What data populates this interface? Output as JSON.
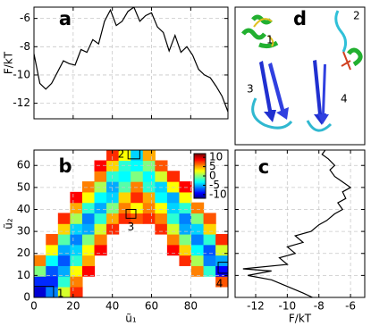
{
  "chart_data": [
    {
      "type": "line",
      "panel": "a",
      "ylabel": "F/kT",
      "color": "#000000",
      "grid": true,
      "x": [
        0,
        3,
        6,
        9,
        12,
        15,
        18,
        21,
        24,
        27,
        30,
        33,
        36,
        39,
        42,
        45,
        48,
        51,
        54,
        57,
        60,
        63,
        66,
        69,
        72,
        75,
        78,
        81,
        84,
        87,
        90,
        93,
        96,
        99
      ],
      "values": [
        -8.5,
        -10.6,
        -11,
        -10.6,
        -9.8,
        -9,
        -9.2,
        -9.3,
        -8.2,
        -8.4,
        -7.5,
        -7.8,
        -6.2,
        -5.4,
        -6.5,
        -6.2,
        -5.5,
        -5.2,
        -6.2,
        -5.8,
        -5.6,
        -6.6,
        -7,
        -8.3,
        -7.2,
        -8.4,
        -8,
        -8.6,
        -9.6,
        -10,
        -10.2,
        -10.8,
        -11.5,
        -12.6
      ],
      "xlim": [
        0,
        99
      ],
      "xticks": [
        0,
        20,
        40,
        60,
        80
      ],
      "xtick_labels": false,
      "ylim": [
        -13.1,
        -5.2
      ],
      "yticks": [
        -6,
        -8,
        -10,
        -12
      ]
    },
    {
      "type": "heatmap",
      "panel": "b",
      "xlabel": "ũ₁",
      "ylabel": "ũ₂",
      "grid": true,
      "colormap": "jet",
      "xlim": [
        0,
        99
      ],
      "xticks": [
        0,
        20,
        40,
        60,
        80
      ],
      "ylim": [
        0,
        67
      ],
      "yticks": [
        0,
        10,
        20,
        30,
        40,
        50,
        60
      ],
      "clim": [
        -12,
        12
      ],
      "colorbar_ticks": [
        10,
        5,
        0,
        -5,
        -10
      ],
      "z": [
        [
          -10,
          -6,
          2,
          8,
          null,
          null,
          null,
          null,
          null,
          null,
          null,
          null,
          null,
          null,
          null,
          null
        ],
        [
          -8,
          -8,
          -2,
          6,
          null,
          null,
          null,
          null,
          null,
          null,
          null,
          null,
          null,
          null,
          null,
          7
        ],
        [
          0,
          -7,
          -5,
          3,
          9,
          null,
          null,
          null,
          null,
          null,
          null,
          null,
          null,
          6,
          -2,
          -9
        ],
        [
          6,
          -3,
          -7,
          -2,
          5,
          null,
          null,
          null,
          null,
          null,
          null,
          null,
          8,
          1,
          -6,
          -5
        ],
        [
          null,
          3,
          -5,
          -4,
          3,
          9,
          null,
          null,
          null,
          null,
          null,
          9,
          4,
          -3,
          -7,
          2
        ],
        [
          null,
          7,
          -1,
          -6,
          0,
          6,
          null,
          null,
          null,
          null,
          null,
          6,
          0,
          -6,
          -2,
          8
        ],
        [
          null,
          null,
          4,
          -4,
          -5,
          2,
          8,
          null,
          null,
          null,
          8,
          2,
          -5,
          -4,
          4,
          null
        ],
        [
          null,
          null,
          8,
          1,
          -6,
          -2,
          5,
          8,
          7,
          8,
          6,
          -2,
          -6,
          0,
          7,
          null
        ],
        [
          null,
          null,
          null,
          5,
          -2,
          -5,
          0,
          6,
          3,
          6,
          3,
          -4,
          -2,
          6,
          null,
          null
        ],
        [
          null,
          null,
          null,
          9,
          3,
          -3,
          -4,
          4,
          8,
          5,
          -3,
          -5,
          3,
          null,
          null,
          null
        ],
        [
          null,
          null,
          null,
          null,
          6,
          1,
          -5,
          -1,
          6,
          -2,
          -4,
          3,
          9,
          null,
          null,
          null
        ],
        [
          null,
          null,
          null,
          null,
          null,
          6,
          -2,
          -3,
          0,
          -3,
          2,
          8,
          null,
          null,
          null,
          null
        ],
        [
          null,
          null,
          null,
          null,
          null,
          9,
          4,
          -2,
          -3,
          0,
          7,
          null,
          null,
          null,
          null,
          null
        ],
        [
          null,
          null,
          null,
          null,
          null,
          null,
          8,
          3,
          -4,
          5,
          null,
          null,
          null,
          null,
          null,
          null
        ]
      ],
      "states": [
        {
          "label": "1",
          "x": [
            0,
            10
          ],
          "y": [
            0,
            5
          ]
        },
        {
          "label": "2",
          "x": [
            48,
            54
          ],
          "y": [
            63,
            67
          ]
        },
        {
          "label": "3",
          "x": [
            47,
            52
          ],
          "y": [
            36,
            40
          ]
        },
        {
          "label": "4",
          "x": [
            94,
            99
          ],
          "y": [
            11,
            16
          ]
        }
      ]
    },
    {
      "type": "line",
      "orientation": "vertical",
      "panel": "c",
      "xlabel": "F/kT",
      "color": "#000000",
      "grid": true,
      "y": [
        0,
        2,
        5,
        8,
        10,
        12,
        13,
        15,
        18,
        20,
        23,
        25,
        28,
        30,
        33,
        35,
        38,
        40,
        43,
        45,
        48,
        50,
        53,
        55,
        58,
        60,
        63,
        65,
        67
      ],
      "values": [
        -8.4,
        -9,
        -10,
        -11,
        -12.5,
        -11,
        -12.8,
        -10,
        -10.5,
        -9.5,
        -10,
        -9,
        -9.5,
        -8.5,
        -8,
        -7.5,
        -7,
        -6.5,
        -6.8,
        -6.3,
        -6.5,
        -6,
        -6.6,
        -7,
        -7.3,
        -7,
        -7.4,
        -7.8,
        -7.6
      ],
      "xlim": [
        -13.3,
        -5.1
      ],
      "xticks": [
        -12,
        -10,
        -8,
        -6
      ],
      "ylim": [
        0,
        67
      ],
      "yticks": [
        0,
        10,
        20,
        30,
        40,
        50,
        60
      ],
      "ytick_labels": false
    }
  ],
  "structures": {
    "panel": "d",
    "states": [
      "1",
      "2",
      "3",
      "4"
    ]
  }
}
